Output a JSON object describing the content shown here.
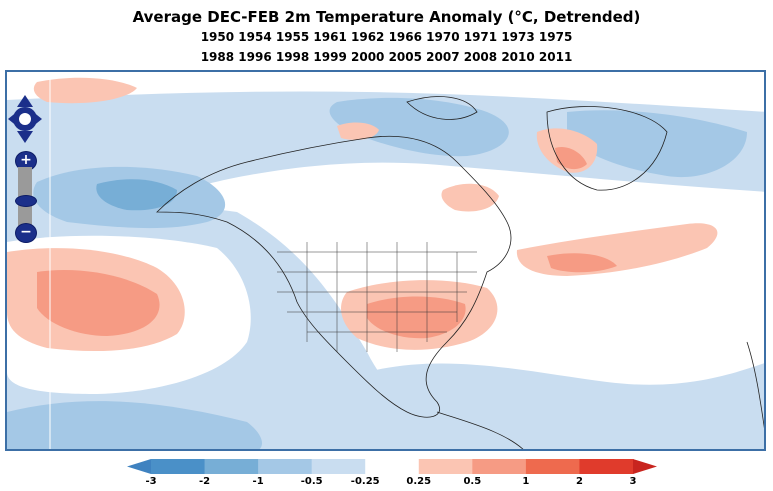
{
  "title": {
    "main": "Average DEC-FEB 2m Temperature Anomaly (°C, Detrended)",
    "years_line1": "1950 1954 1955 1961 1962 1966 1970 1971 1973 1975",
    "years_line2": "1988 1996 1998 1999 2000 2005 2007 2008 2010 2011"
  },
  "map": {
    "region": "North America",
    "zoom_in_label": "+",
    "zoom_out_label": "−"
  },
  "legend": {
    "ticks": [
      "-3",
      "-2",
      "-1",
      "-0.5",
      "-0.25",
      "0.25",
      "0.5",
      "1",
      "2",
      "3"
    ],
    "colors": [
      "#4a90c8",
      "#77aed6",
      "#a4c8e6",
      "#c9ddf0",
      "#ffffff",
      "#fbc5b3",
      "#f69b84",
      "#ee6a4e",
      "#e03b2c"
    ],
    "low_arrow_color": "#3f82c0",
    "high_arrow_color": "#c8251f"
  }
}
